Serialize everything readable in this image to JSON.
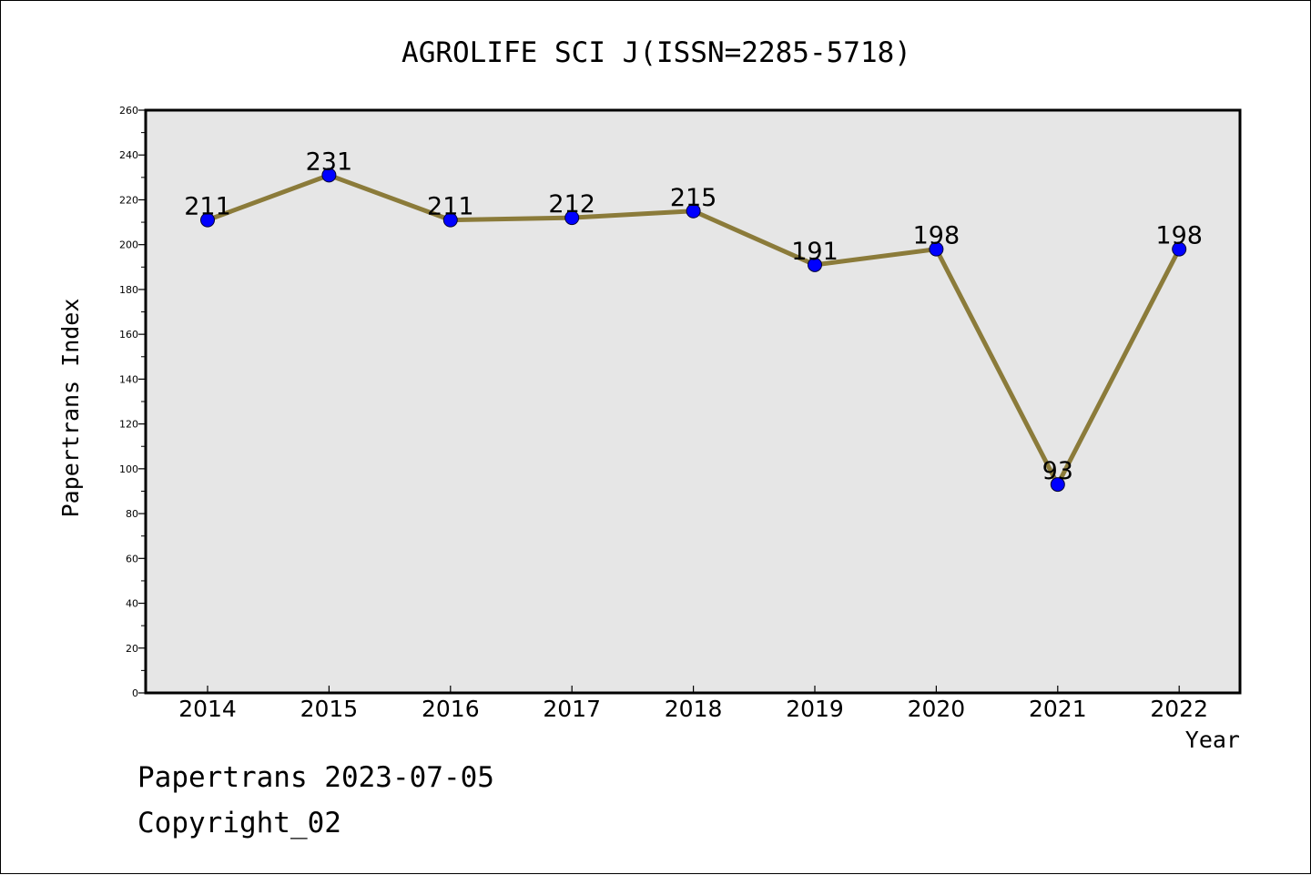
{
  "chart_data": {
    "type": "line",
    "title": "AGROLIFE SCI J(ISSN=2285-5718)",
    "xlabel": "Year",
    "ylabel": "Papertrans Index",
    "categories": [
      "2014",
      "2015",
      "2016",
      "2017",
      "2018",
      "2019",
      "2020",
      "2021",
      "2022"
    ],
    "series": [
      {
        "values": [
          211,
          231,
          211,
          212,
          215,
          191,
          198,
          93,
          198
        ]
      }
    ],
    "data_labels": [
      "211",
      "231",
      "211",
      "212",
      "215",
      "191",
      "198",
      "93",
      "198"
    ],
    "ylim": [
      0,
      260
    ],
    "yticks": [
      "0",
      "20",
      "40",
      "60",
      "80",
      "100",
      "120",
      "140",
      "160",
      "180",
      "200",
      "220",
      "240",
      "260"
    ],
    "ytick_values": [
      0,
      20,
      40,
      60,
      80,
      100,
      120,
      140,
      160,
      180,
      200,
      220,
      240,
      260
    ],
    "grid": false,
    "colors": {
      "line": "#8B7B3A",
      "marker": "#0000FF",
      "plot_background": "#E6E6E6"
    }
  },
  "footer": {
    "line1": "Papertrans 2023-07-05",
    "line2": "Copyright_02"
  }
}
